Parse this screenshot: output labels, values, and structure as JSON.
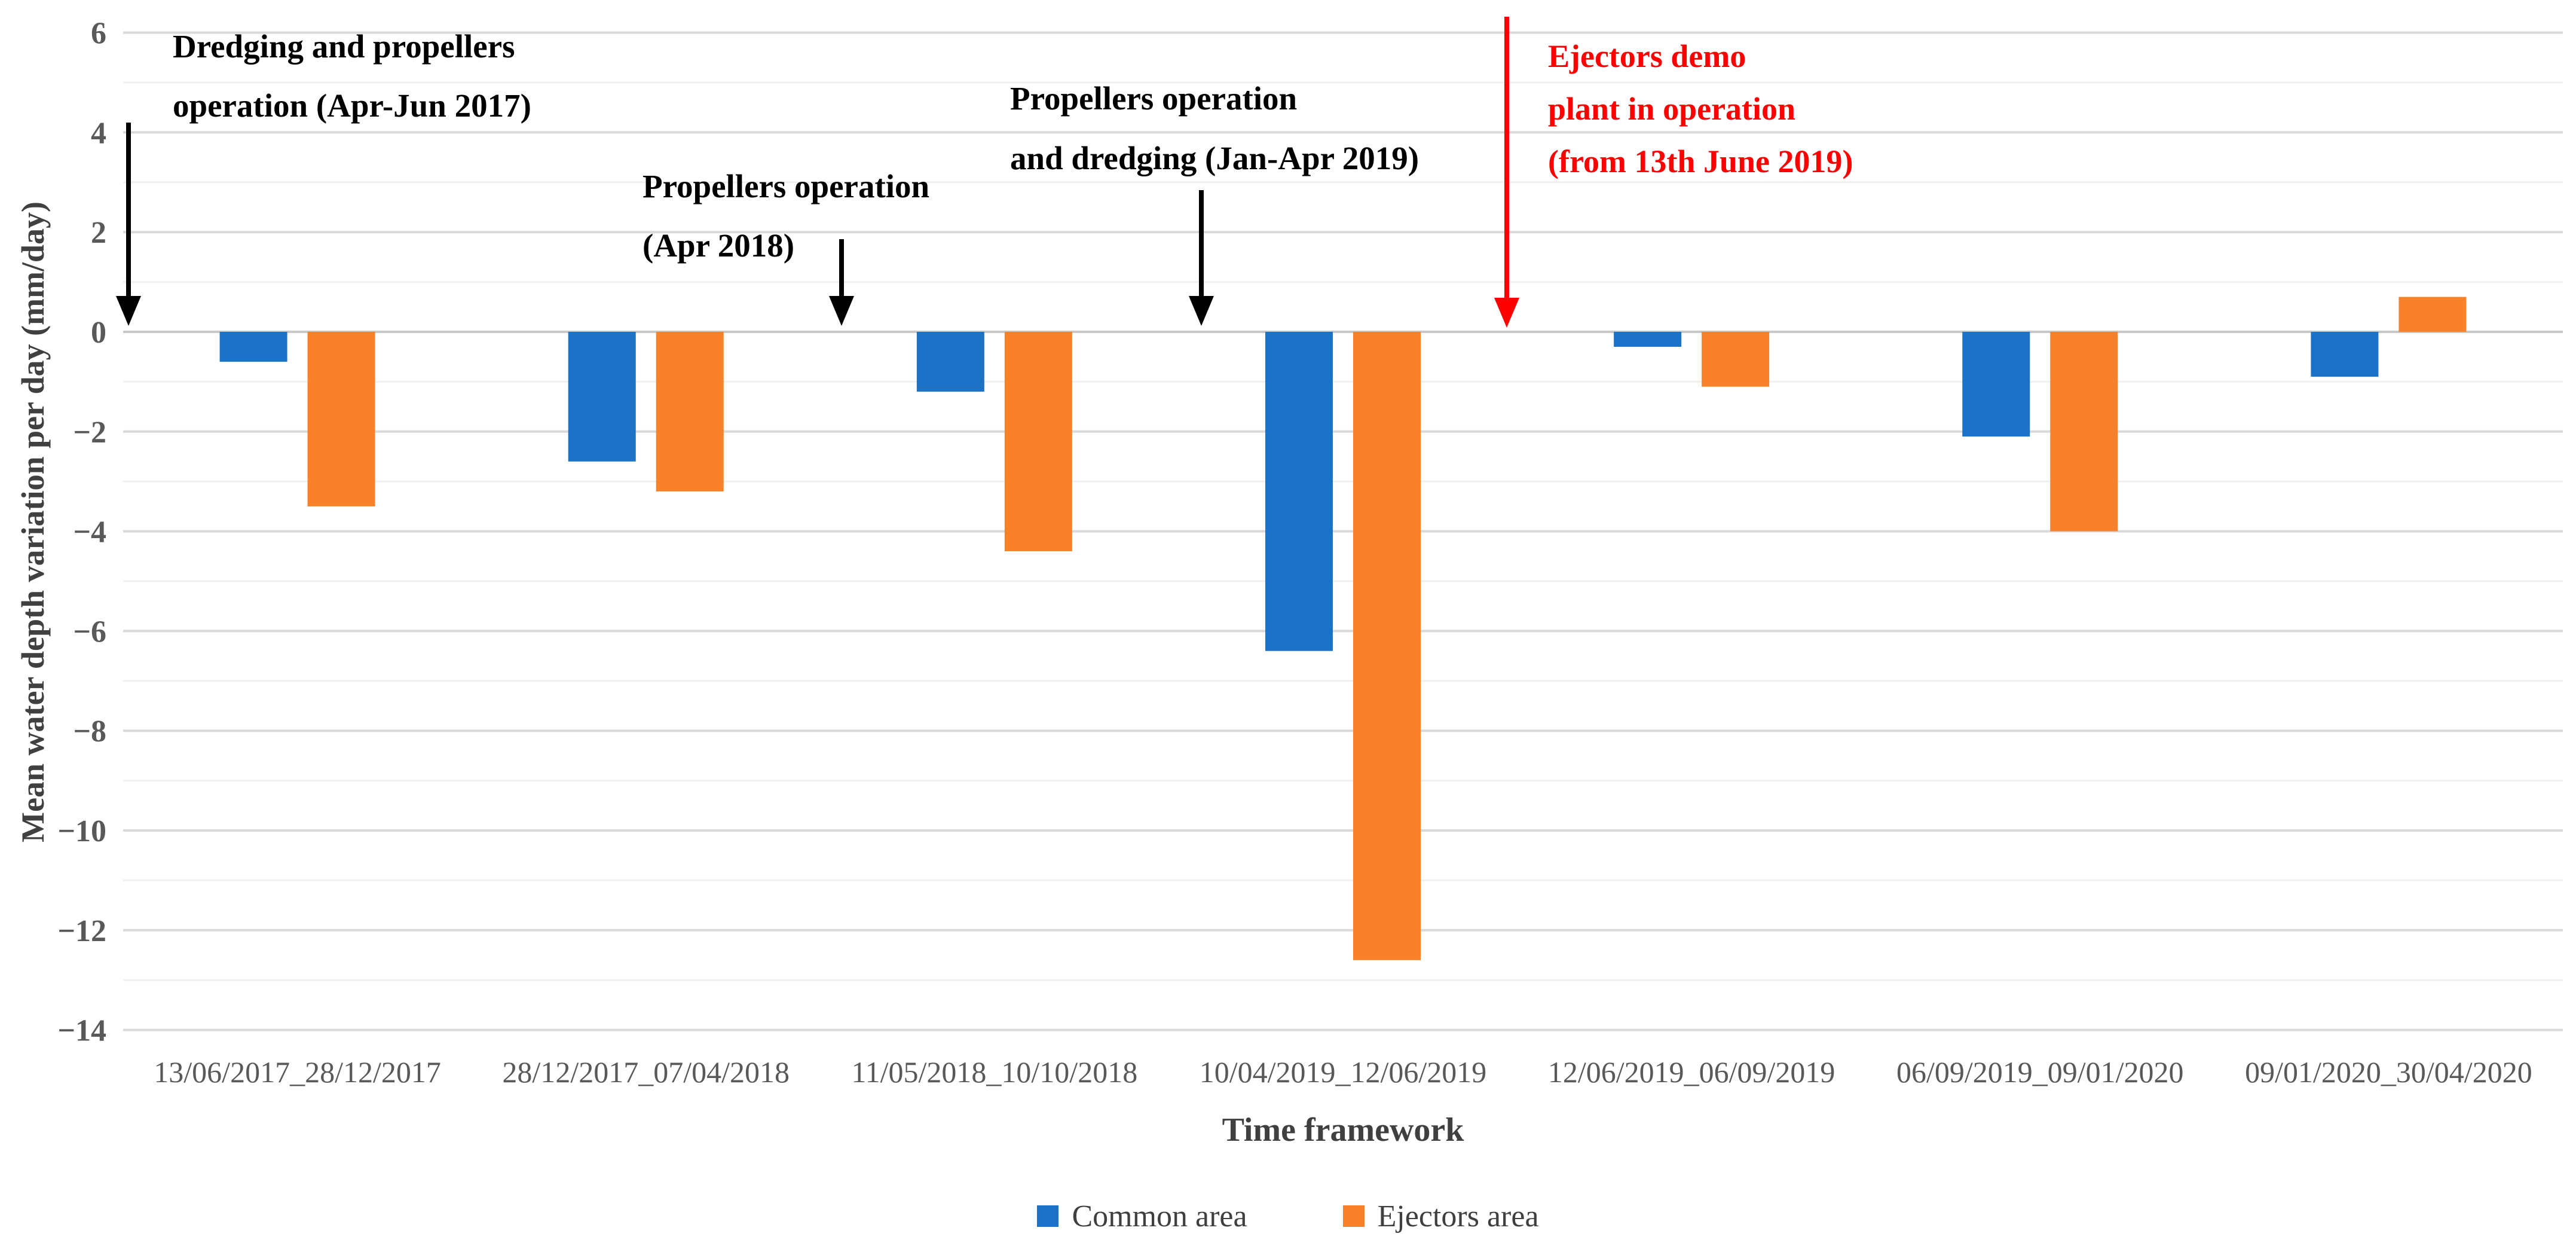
{
  "chart_data": {
    "type": "bar",
    "title": "",
    "categories": [
      "13/06/2017_28/12/2017",
      "28/12/2017_07/04/2018",
      "11/05/2018_10/10/2018",
      "10/04/2019_12/06/2019",
      "12/06/2019_06/09/2019",
      "06/09/2019_09/01/2020",
      "09/01/2020_30/04/2020"
    ],
    "series": [
      {
        "name": "Common area",
        "color": "#1B72C6",
        "values": [
          -0.6,
          -2.6,
          -1.2,
          -6.4,
          -0.3,
          -2.1,
          -0.9
        ]
      },
      {
        "name": "Ejectors area",
        "color": "#F8812A",
        "values": [
          -3.5,
          -3.2,
          -4.4,
          -12.6,
          -1.1,
          -4.0,
          0.7
        ]
      }
    ],
    "xlabel": "Time framework",
    "ylabel": "Mean water depth variation per day (mm/day)",
    "ylim": [
      -14,
      6
    ],
    "yticks": [
      6,
      4,
      2,
      0,
      -2,
      -4,
      -6,
      -8,
      -10,
      -12,
      -14
    ],
    "gridline_step": 1,
    "grid": true,
    "legend_position": "bottom"
  },
  "annotations": [
    {
      "lines": [
        "Dredging and propellers",
        "operation (Apr-Jun 2017)"
      ],
      "color": "#000000"
    },
    {
      "lines": [
        "Propellers operation",
        "(Apr 2018)"
      ],
      "color": "#000000"
    },
    {
      "lines": [
        "Propellers operation",
        "and dredging (Jan-Apr 2019)"
      ],
      "color": "#000000"
    },
    {
      "lines": [
        "Ejectors demo",
        "plant in operation",
        "(from 13th June 2019)"
      ],
      "color": "#FF0000"
    }
  ],
  "colors": {
    "tick_label": "#595959",
    "axis_title": "#404040",
    "grid_major": "#D9D9D9",
    "grid_minor": "#F0F0F0",
    "grid_zero": "#C8C8C8"
  }
}
